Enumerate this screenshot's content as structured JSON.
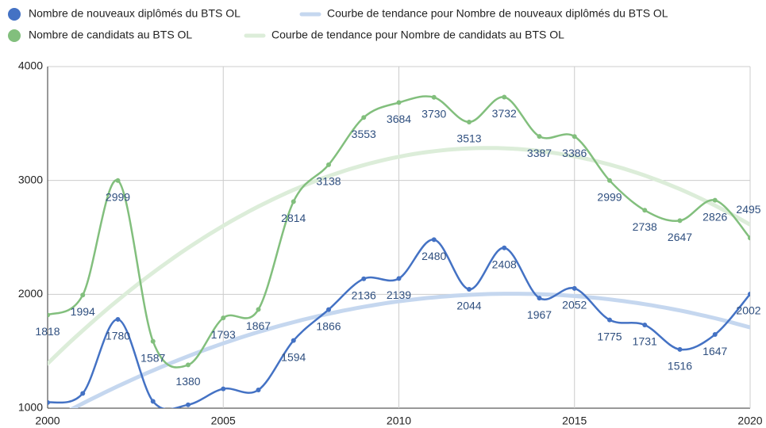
{
  "chart_data": {
    "type": "line",
    "x": [
      2000,
      2001,
      2002,
      2003,
      2004,
      2005,
      2006,
      2007,
      2008,
      2009,
      2010,
      2011,
      2012,
      2013,
      2014,
      2015,
      2016,
      2017,
      2018,
      2019,
      2020
    ],
    "xlim": [
      2000,
      2020
    ],
    "xticks": [
      2000,
      2005,
      2010,
      2015,
      2020
    ],
    "ylim": [
      1000,
      4000
    ],
    "yticks": [
      1000,
      2000,
      3000,
      4000
    ],
    "grid": true,
    "legend": "top",
    "series": [
      {
        "name": "Nombre de nouveaux diplômés du BTS OL",
        "color": "#4472c4",
        "values": [
          1050,
          1130,
          1780,
          1060,
          1030,
          1170,
          1160,
          1594,
          1866,
          2136,
          2139,
          2480,
          2044,
          2408,
          1967,
          2052,
          1775,
          1731,
          1516,
          1647,
          2002
        ],
        "value_labels": [
          null,
          null,
          "1780",
          null,
          null,
          null,
          null,
          "1594",
          "1866",
          "2136",
          "2139",
          "2480",
          "2044",
          "2408",
          "1967",
          "2052",
          "1775",
          "1731",
          "1516",
          "1647",
          "2002"
        ],
        "trendline": {
          "name": "Courbe de tendance pour Nombre de nouveaux diplômés du BTS OL",
          "color": "#c5d7ef"
        }
      },
      {
        "name": "Nombre de candidats au BTS OL",
        "color": "#82bf7d",
        "values": [
          1818,
          1994,
          2999,
          1587,
          1380,
          1793,
          1867,
          2814,
          3138,
          3553,
          3684,
          3730,
          3513,
          3732,
          3387,
          3386,
          2999,
          2738,
          2647,
          2826,
          2495
        ],
        "trendline": {
          "name": "Courbe de tendance pour Nombre de candidats au BTS OL",
          "color": "#dcedd9"
        }
      }
    ]
  }
}
